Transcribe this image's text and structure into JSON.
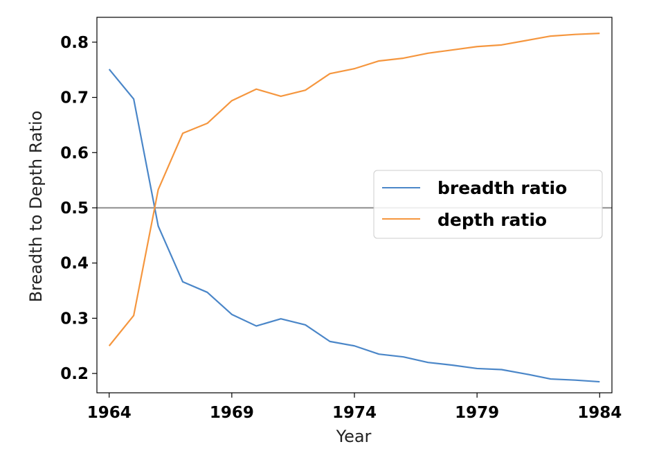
{
  "chart_data": {
    "type": "line",
    "xlabel": "Year",
    "ylabel": "Breadth to Depth Ratio",
    "xlim": [
      1963.5,
      1984.5
    ],
    "ylim": [
      0.165,
      0.845
    ],
    "x_ticks": [
      1964,
      1969,
      1974,
      1979,
      1984
    ],
    "y_ticks": [
      0.2,
      0.3,
      0.4,
      0.5,
      0.6,
      0.7,
      0.8
    ],
    "x": [
      1964,
      1965,
      1966,
      1967,
      1968,
      1969,
      1970,
      1971,
      1972,
      1973,
      1974,
      1975,
      1976,
      1977,
      1978,
      1979,
      1980,
      1981,
      1982,
      1983,
      1984
    ],
    "series": [
      {
        "name": "breadth ratio",
        "color": "#4a86c8",
        "values": [
          0.751,
          0.697,
          0.467,
          0.366,
          0.347,
          0.307,
          0.286,
          0.299,
          0.288,
          0.258,
          0.25,
          0.235,
          0.23,
          0.22,
          0.215,
          0.209,
          0.207,
          0.199,
          0.19,
          0.188,
          0.185
        ]
      },
      {
        "name": "depth ratio",
        "color": "#f5963e",
        "values": [
          0.25,
          0.305,
          0.533,
          0.635,
          0.653,
          0.694,
          0.715,
          0.702,
          0.713,
          0.743,
          0.752,
          0.766,
          0.771,
          0.78,
          0.786,
          0.792,
          0.795,
          0.803,
          0.811,
          0.814,
          0.816
        ]
      }
    ],
    "reference_line": {
      "y": 0.5,
      "color": "#999999"
    },
    "legend_position": "center-right",
    "grid": false
  }
}
